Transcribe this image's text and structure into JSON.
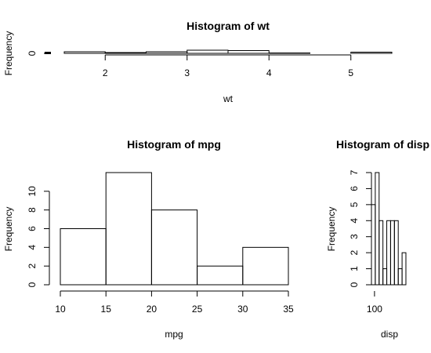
{
  "chart_data": [
    {
      "type": "bar",
      "title": "Histogram of wt",
      "xlabel": "wt",
      "ylabel": "Frequency",
      "xlim": [
        1.5,
        5.5
      ],
      "ylim": [
        0,
        8
      ],
      "xticks": [
        2,
        3,
        4,
        5
      ],
      "yticks": [
        0
      ],
      "bins": [
        {
          "x0": 1.5,
          "x1": 2.0,
          "count": 4
        },
        {
          "x0": 2.0,
          "x1": 2.5,
          "count": 2
        },
        {
          "x0": 2.5,
          "x1": 3.0,
          "count": 4
        },
        {
          "x0": 3.0,
          "x1": 3.5,
          "count": 8
        },
        {
          "x0": 3.5,
          "x1": 4.0,
          "count": 7
        },
        {
          "x0": 4.0,
          "x1": 4.5,
          "count": 1
        },
        {
          "x0": 4.5,
          "x1": 5.0,
          "count": 0
        },
        {
          "x0": 5.0,
          "x1": 5.5,
          "count": 3
        }
      ]
    },
    {
      "type": "bar",
      "title": "Histogram of mpg",
      "xlabel": "mpg",
      "ylabel": "Frequency",
      "xlim": [
        10,
        35
      ],
      "ylim": [
        0,
        12
      ],
      "xticks": [
        10,
        15,
        20,
        25,
        30,
        35
      ],
      "yticks": [
        0,
        2,
        4,
        6,
        8,
        10
      ],
      "bins": [
        {
          "x0": 10,
          "x1": 15,
          "count": 6
        },
        {
          "x0": 15,
          "x1": 20,
          "count": 12
        },
        {
          "x0": 20,
          "x1": 25,
          "count": 8
        },
        {
          "x0": 25,
          "x1": 30,
          "count": 2
        },
        {
          "x0": 30,
          "x1": 35,
          "count": 4
        }
      ]
    },
    {
      "type": "bar",
      "title": "Histogram of disp",
      "xlabel": "disp",
      "ylabel": "Frequency",
      "xlim": [
        60,
        500
      ],
      "ylim": [
        0,
        7
      ],
      "xticks": [
        100
      ],
      "yticks": [
        0,
        1,
        2,
        3,
        4,
        5,
        6,
        7
      ],
      "bins": [
        {
          "x0": 60,
          "x1": 110,
          "count": 5
        },
        {
          "x0": 110,
          "x1": 160,
          "count": 7
        },
        {
          "x0": 160,
          "x1": 210,
          "count": 4
        },
        {
          "x0": 210,
          "x1": 260,
          "count": 1
        },
        {
          "x0": 260,
          "x1": 310,
          "count": 4
        },
        {
          "x0": 310,
          "x1": 360,
          "count": 4
        },
        {
          "x0": 360,
          "x1": 410,
          "count": 4
        },
        {
          "x0": 410,
          "x1": 460,
          "count": 1
        },
        {
          "x0": 460,
          "x1": 510,
          "count": 2
        }
      ]
    }
  ]
}
